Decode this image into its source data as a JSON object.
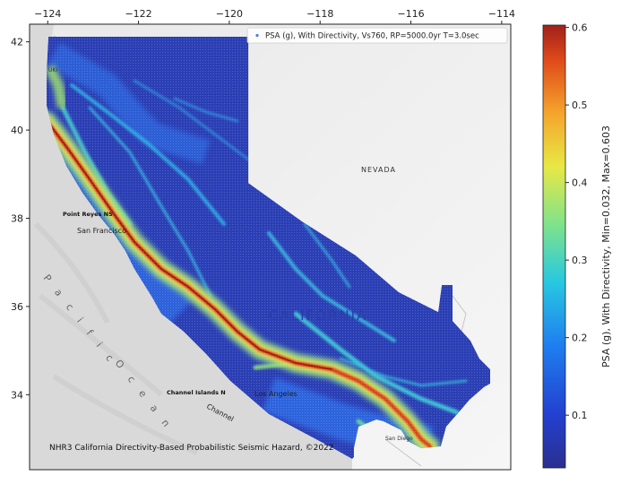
{
  "map": {
    "x_ticks": [
      {
        "value": -124,
        "label": "−124"
      },
      {
        "value": -122,
        "label": "−122"
      },
      {
        "value": -120,
        "label": "−120"
      },
      {
        "value": -118,
        "label": "−118"
      },
      {
        "value": -116,
        "label": "−116"
      },
      {
        "value": -114,
        "label": "−114"
      }
    ],
    "y_ticks": [
      {
        "value": 42,
        "label": "42"
      },
      {
        "value": 40,
        "label": "40"
      },
      {
        "value": 38,
        "label": "38"
      },
      {
        "value": 36,
        "label": "36"
      },
      {
        "value": 34,
        "label": "34"
      }
    ],
    "lon_range": [
      -124.4,
      -113.8
    ],
    "lat_range": [
      32.3,
      42.4
    ],
    "legend_text": "PSA (g), With Directivity, Vs760, RP=5000.0yr T=3.0sec",
    "credit": "NHR3 California Directivity-Based Probabilistic Seismic Hazard, ©2022",
    "places": {
      "point_reyes": "Point Reyes NS",
      "san_francisco": "San Francisco",
      "nevada": "NEVADA",
      "california": "CALIFORNIA",
      "los_angeles": "Los Angeles",
      "channel_islands": "Channel Islands N",
      "ukiah": "UKI",
      "san_diego": "San Diego",
      "pacific": "Pacific",
      "ocean": "Ocean",
      "channel": "Channel"
    },
    "colors": {
      "low": "#2b3fb5",
      "mid": "#7fe06a",
      "high": "#b01c10"
    }
  },
  "colorbar": {
    "label": "PSA (g), With Directivity, Min=0.032, Max=0.603",
    "min": 0.032,
    "max": 0.603,
    "ticks": [
      {
        "value": 0.6,
        "label": "0.6"
      },
      {
        "value": 0.5,
        "label": "0.5"
      },
      {
        "value": 0.4,
        "label": "0.4"
      },
      {
        "value": 0.3,
        "label": "0.3"
      },
      {
        "value": 0.2,
        "label": "0.2"
      },
      {
        "value": 0.1,
        "label": "0.1"
      }
    ]
  }
}
